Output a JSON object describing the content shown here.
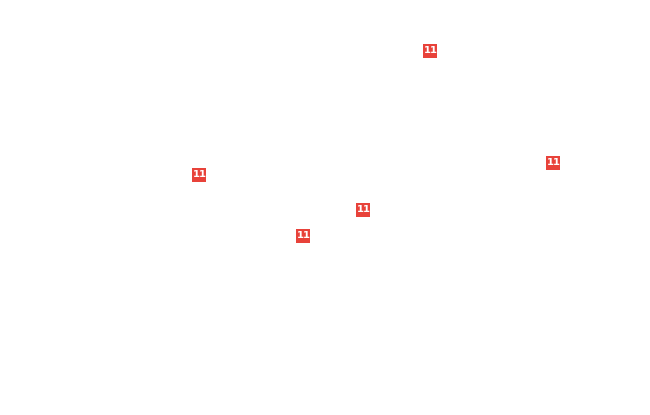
{
  "badge_color": "#e8423a",
  "markers": [
    {
      "label": "11"
    },
    {
      "label": "11"
    },
    {
      "label": "11"
    },
    {
      "label": "11"
    },
    {
      "label": "11"
    }
  ]
}
